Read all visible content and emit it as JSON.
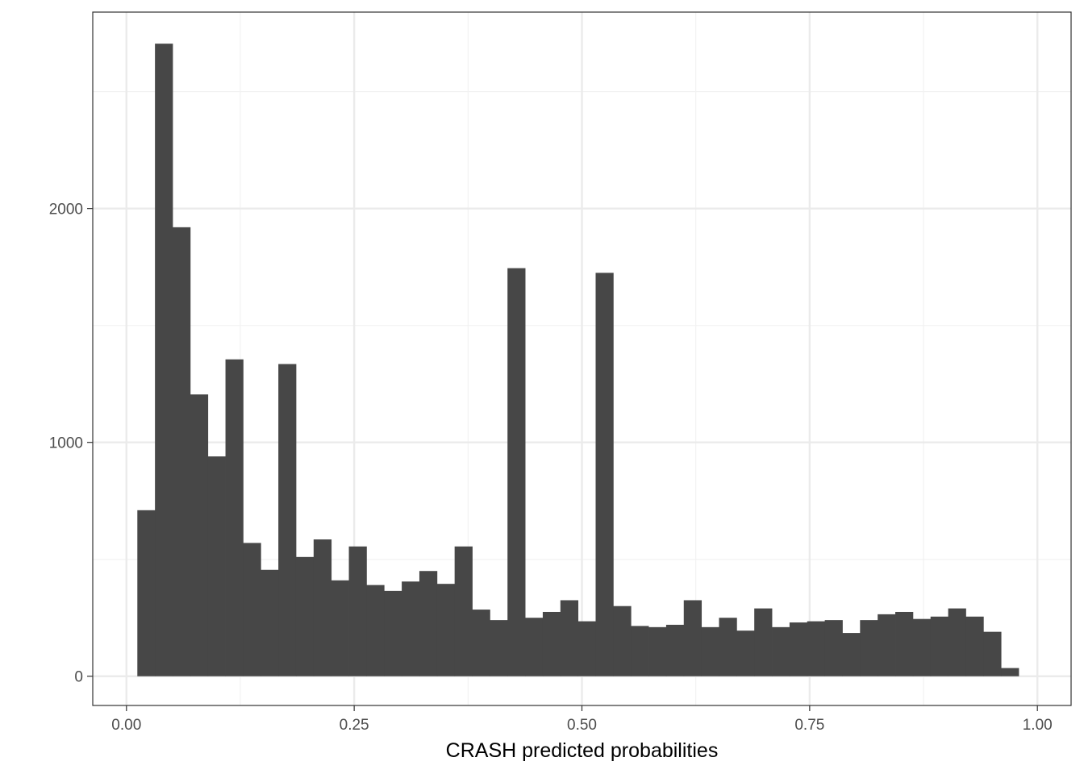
{
  "chart_data": {
    "type": "bar",
    "subtype": "histogram",
    "title": "",
    "xlabel": "CRASH predicted probabilities",
    "ylabel": "",
    "xlim": [
      -0.037,
      1.037
    ],
    "ylim": [
      -125,
      2840
    ],
    "x_ticks": [
      0.0,
      0.25,
      0.5,
      0.75,
      1.0
    ],
    "x_tick_labels": [
      "0.00",
      "0.25",
      "0.50",
      "0.75",
      "1.00"
    ],
    "y_ticks": [
      0,
      1000,
      2000
    ],
    "y_tick_labels": [
      "0",
      "1000",
      "2000"
    ],
    "grid": true,
    "bin_width": 0.01935,
    "bin_start": 0.01195,
    "values": [
      710,
      2705,
      1920,
      1205,
      940,
      1355,
      570,
      455,
      1335,
      510,
      585,
      410,
      555,
      390,
      365,
      405,
      450,
      395,
      555,
      285,
      240,
      1745,
      250,
      275,
      325,
      235,
      1725,
      300,
      215,
      210,
      220,
      325,
      210,
      250,
      195,
      290,
      210,
      230,
      235,
      240,
      185,
      240,
      265,
      275,
      245,
      255,
      290,
      255,
      190,
      35
    ],
    "colors": {
      "bar": "#474747",
      "grid_major": "#ebebeb",
      "grid_minor": "#f2f2f2",
      "panel_border": "#333333",
      "tick": "#333333"
    }
  }
}
